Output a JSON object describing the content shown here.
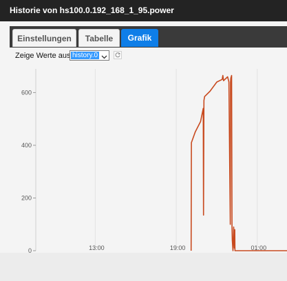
{
  "window": {
    "title": "Historie von hs100.0.192_168_1_95.power"
  },
  "tabs": [
    {
      "label": "Einstellungen",
      "active": false
    },
    {
      "label": "Tabelle",
      "active": false
    },
    {
      "label": "Grafik",
      "active": true
    }
  ],
  "toolbar": {
    "show_values_label": "Zeige Werte aus",
    "source_select_value": "history.0",
    "refresh_icon": "refresh-icon"
  },
  "colors": {
    "accent": "#0e7ee8",
    "line": "#c84a1f",
    "title_bar": "#232323"
  },
  "chart_data": {
    "type": "line",
    "title": "",
    "xlabel": "",
    "ylabel": "",
    "x_ticks": [
      "13:00",
      "19:00",
      "01:00"
    ],
    "x_tick_hours": [
      13,
      19,
      25
    ],
    "xlim_hours": [
      8.6,
      27.2
    ],
    "ylim": [
      0,
      690
    ],
    "y_ticks": [
      0,
      200,
      400,
      600
    ],
    "grid": "vertical",
    "series": [
      {
        "name": "",
        "x_hours": [
          20.1,
          20.12,
          20.4,
          20.8,
          21.0,
          21.02,
          21.05,
          21.1,
          21.5,
          22.0,
          22.4,
          22.45,
          22.5,
          22.8,
          22.9,
          23.0,
          23.02,
          23.04,
          23.1,
          23.13,
          23.15,
          23.2,
          23.25,
          23.3,
          23.33,
          23.35,
          23.4,
          23.6,
          24.0,
          25.0,
          26.5,
          27.2
        ],
        "y": [
          0,
          410,
          450,
          490,
          540,
          135,
          570,
          585,
          605,
          640,
          650,
          665,
          645,
          660,
          640,
          100,
          640,
          655,
          665,
          90,
          40,
          0,
          90,
          10,
          80,
          0,
          0,
          0,
          0,
          0,
          0,
          0
        ]
      }
    ]
  }
}
